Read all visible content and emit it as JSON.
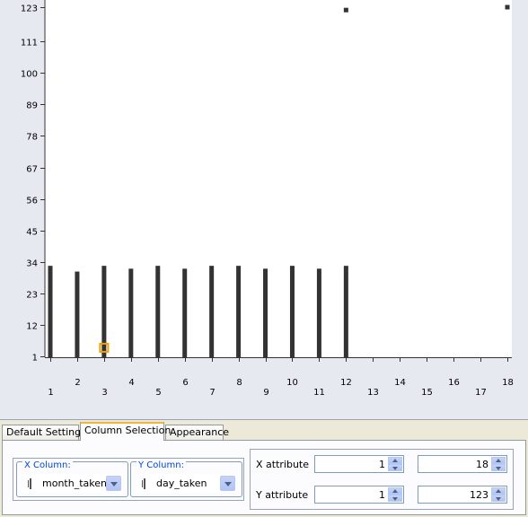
{
  "chart_data": {
    "type": "scatter",
    "x_ticks": [
      "1",
      "2",
      "3",
      "4",
      "5",
      "6",
      "7",
      "8",
      "9",
      "10",
      "11",
      "12",
      "13",
      "14",
      "15",
      "16",
      "17",
      "18"
    ],
    "y_ticks": [
      "1",
      "12",
      "23",
      "34",
      "45",
      "56",
      "67",
      "78",
      "89",
      "100",
      "111",
      "123"
    ],
    "xlim": [
      1,
      18
    ],
    "ylim": [
      1,
      123
    ],
    "columns": [
      {
        "x": 1,
        "y_from": 1,
        "y_to": 32
      },
      {
        "x": 2,
        "y_from": 1,
        "y_to": 30
      },
      {
        "x": 3,
        "y_from": 1,
        "y_to": 32
      },
      {
        "x": 4,
        "y_from": 1,
        "y_to": 31
      },
      {
        "x": 5,
        "y_from": 1,
        "y_to": 32
      },
      {
        "x": 6,
        "y_from": 1,
        "y_to": 31
      },
      {
        "x": 7,
        "y_from": 1,
        "y_to": 32
      },
      {
        "x": 8,
        "y_from": 1,
        "y_to": 32
      },
      {
        "x": 9,
        "y_from": 1,
        "y_to": 31
      },
      {
        "x": 10,
        "y_from": 1,
        "y_to": 32
      },
      {
        "x": 11,
        "y_from": 1,
        "y_to": 31
      },
      {
        "x": 12,
        "y_from": 1,
        "y_to": 32
      }
    ],
    "extra_points": [
      {
        "x": 12,
        "y": 122
      },
      {
        "x": 18,
        "y": 123
      }
    ],
    "highlight_point": {
      "x": 3,
      "y": 4
    },
    "point_color": "#333333",
    "highlight_color": "#f0a000",
    "grid": false
  },
  "tabs": [
    {
      "label": "Default Settings",
      "active": false
    },
    {
      "label": "Column Selection",
      "active": true
    },
    {
      "label": "Appearance",
      "active": false
    }
  ],
  "column_selection": {
    "x_column": {
      "legend": "X Column:",
      "value": "month_taken"
    },
    "y_column": {
      "legend": "Y Column:",
      "value": "day_taken"
    }
  },
  "attributes": {
    "x": {
      "label": "X attribute",
      "min": "1",
      "max": "18"
    },
    "y": {
      "label": "Y attribute",
      "min": "1",
      "max": "123"
    }
  }
}
